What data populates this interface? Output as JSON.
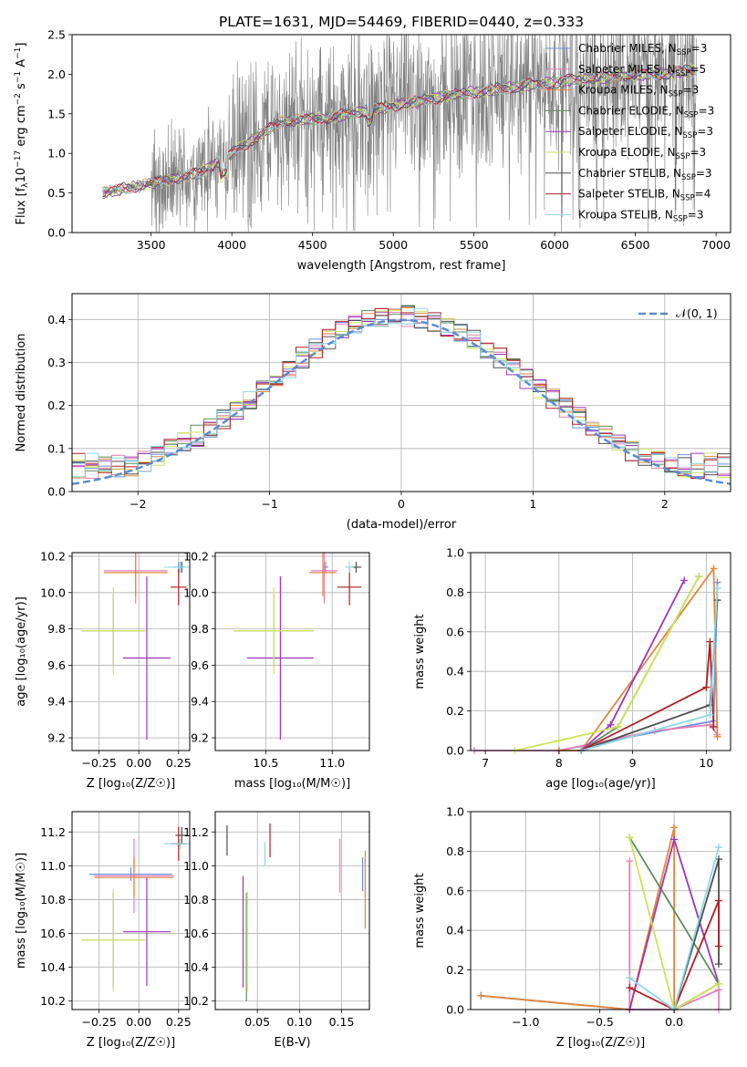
{
  "figure_title": "PLATE=1631, MJD=54469, FIBERID=0440, z=0.333",
  "colors": {
    "chabrier_miles": "#6f8fdc",
    "salpeter_miles": "#e67fb7",
    "kroupa_miles": "#e1873e",
    "chabrier_elodie": "#5b8c5b",
    "salpeter_elodie": "#9c36b5",
    "kroupa_elodie": "#cfe35a",
    "chabrier_stelib": "#4d4d4d",
    "salpeter_stelib": "#b01e24",
    "kroupa_stelib": "#8dd8e3",
    "spectrum": "#808080",
    "gaussian": "#5b8ad6",
    "grid": "#b0b0b0"
  },
  "legend_entries": [
    {
      "label": "Chabrier MILES, N",
      "sub": "SSP",
      "suffix": "=3",
      "color": "#6f8fdc"
    },
    {
      "label": "Salpeter MILES, N",
      "sub": "SSP",
      "suffix": "=5",
      "color": "#e67fb7"
    },
    {
      "label": "Kroupa MILES, N",
      "sub": "SSP",
      "suffix": "=3",
      "color": "#e1873e"
    },
    {
      "label": "Chabrier ELODIE, N",
      "sub": "SSP",
      "suffix": "=3",
      "color": "#5b8c5b"
    },
    {
      "label": "Salpeter ELODIE, N",
      "sub": "SSP",
      "suffix": "=3",
      "color": "#9c36b5"
    },
    {
      "label": "Kroupa ELODIE, N",
      "sub": "SSP",
      "suffix": "=3",
      "color": "#cfe35a"
    },
    {
      "label": "Chabrier STELIB, N",
      "sub": "SSP",
      "suffix": "=3",
      "color": "#4d4d4d"
    },
    {
      "label": "Salpeter STELIB, N",
      "sub": "SSP",
      "suffix": "=4",
      "color": "#b01e24"
    },
    {
      "label": "Kroupa STELIB, N",
      "sub": "SSP",
      "suffix": "=3",
      "color": "#8dd8e3"
    }
  ],
  "chart_data": [
    {
      "id": "spectrum",
      "type": "line",
      "title": "PLATE=1631, MJD=54469, FIBERID=0440, z=0.333",
      "xlabel": "wavelength [Angstrom, rest frame]",
      "ylabel_parts": [
        "Flux [f",
        "λ",
        "10",
        "−17",
        " erg cm",
        "−2",
        " s",
        "−1",
        " A",
        "−1",
        "]"
      ],
      "xlim": [
        3010,
        7090
      ],
      "ylim": [
        0,
        2.5
      ],
      "xticks": [
        "3500",
        "4000",
        "4500",
        "5000",
        "5500",
        "6000",
        "6500",
        "7000"
      ],
      "yticks": [
        "0.0",
        "0.5",
        "1.0",
        "1.5",
        "2.0",
        "2.5"
      ],
      "grid": false,
      "legend_position": "upper right",
      "data_range": [
        3200,
        6880
      ],
      "continuum": {
        "wavelength": [
          3200,
          3500,
          3800,
          4000,
          4300,
          4600,
          5000,
          5400,
          5800,
          6200,
          6600,
          6880
        ],
        "flux": [
          0.5,
          0.62,
          0.75,
          1.0,
          1.4,
          1.45,
          1.6,
          1.75,
          1.85,
          1.95,
          2.0,
          2.05
        ]
      }
    },
    {
      "id": "residuals",
      "type": "histogram",
      "xlabel": "(data-model)/error",
      "ylabel": "Normed distribution",
      "xlim": [
        -2.5,
        2.5
      ],
      "ylim": [
        0,
        0.46
      ],
      "xticks": [
        "−2",
        "−1",
        "0",
        "1",
        "2"
      ],
      "yticks": [
        "0.0",
        "0.1",
        "0.2",
        "0.3",
        "0.4"
      ],
      "grid": true,
      "legend": "𝒩(0, 1)",
      "legend_position": "upper right",
      "bins": 50
    },
    {
      "id": "age_vs_Z",
      "type": "errorbar",
      "xlabel": "Z [log₁₀(Z/Z☉)]",
      "ylabel": "age  [log₁₀(age/yr)]",
      "xlim": [
        -0.42,
        0.32
      ],
      "ylim": [
        9.13,
        10.22
      ],
      "xticks": [
        "−0.25",
        "0.00",
        "0.25"
      ],
      "yticks": [
        "9.2",
        "9.4",
        "9.6",
        "9.8",
        "10.0",
        "10.2"
      ],
      "grid": true,
      "points": [
        {
          "model": "chabrier_miles",
          "x": 0.25,
          "y": 10.14,
          "xerr": 0.03,
          "yerr": 0.03
        },
        {
          "model": "salpeter_miles",
          "x": -0.02,
          "y": 10.12,
          "xerr": 0.2,
          "yerr": 0.18
        },
        {
          "model": "kroupa_miles",
          "x": -0.02,
          "y": 10.11,
          "xerr": 0.2,
          "yerr": 0.13
        },
        {
          "model": "chabrier_elodie",
          "x": -0.16,
          "y": 9.79,
          "xerr": 0.2,
          "yerr": 0.2
        },
        {
          "model": "salpeter_elodie",
          "x": 0.05,
          "y": 9.64,
          "xerr": 0.15,
          "yerr": 0.45
        },
        {
          "model": "kroupa_elodie",
          "x": -0.16,
          "y": 9.79,
          "xerr": 0.2,
          "yerr": 0.24
        },
        {
          "model": "chabrier_stelib",
          "x": 0.27,
          "y": 10.14,
          "xerr": 0.02,
          "yerr": 0.03
        },
        {
          "model": "salpeter_stelib",
          "x": 0.25,
          "y": 10.03,
          "xerr": 0.05,
          "yerr": 0.1
        },
        {
          "model": "kroupa_stelib",
          "x": 0.26,
          "y": 10.14,
          "xerr": 0.1,
          "yerr": 0.03
        }
      ]
    },
    {
      "id": "age_vs_mass",
      "type": "errorbar",
      "xlabel": "mass [log₁₀(M/M☉)]",
      "ylabel": "",
      "xlim": [
        10.12,
        11.28
      ],
      "ylim": [
        9.13,
        10.22
      ],
      "xticks": [
        "10.5",
        "11.0"
      ],
      "yticks": [
        "9.2",
        "9.4",
        "9.6",
        "9.8",
        "10.0",
        "10.2"
      ],
      "grid": true,
      "points": [
        {
          "model": "chabrier_miles",
          "x": 10.95,
          "y": 10.14,
          "xerr": 0.02,
          "yerr": 0.03
        },
        {
          "model": "salpeter_miles",
          "x": 10.94,
          "y": 10.12,
          "xerr": 0.1,
          "yerr": 0.18
        },
        {
          "model": "kroupa_miles",
          "x": 10.93,
          "y": 10.11,
          "xerr": 0.1,
          "yerr": 0.13
        },
        {
          "model": "chabrier_elodie",
          "x": 10.56,
          "y": 9.79,
          "xerr": 0.3,
          "yerr": 0.2
        },
        {
          "model": "salpeter_elodie",
          "x": 10.61,
          "y": 9.64,
          "xerr": 0.25,
          "yerr": 0.45
        },
        {
          "model": "kroupa_elodie",
          "x": 10.56,
          "y": 9.79,
          "xerr": 0.3,
          "yerr": 0.24
        },
        {
          "model": "chabrier_stelib",
          "x": 11.18,
          "y": 10.14,
          "xerr": 0.04,
          "yerr": 0.03
        },
        {
          "model": "salpeter_stelib",
          "x": 11.13,
          "y": 10.03,
          "xerr": 0.09,
          "yerr": 0.1
        },
        {
          "model": "kroupa_stelib",
          "x": 11.13,
          "y": 10.14,
          "xerr": 0.03,
          "yerr": 0.03
        }
      ]
    },
    {
      "id": "weight_vs_age",
      "type": "line",
      "xlabel": "age  [log₁₀(age/yr)]",
      "ylabel": "mass weight",
      "xlim": [
        6.8,
        10.33
      ],
      "ylim": [
        0,
        1
      ],
      "xticks": [
        "7",
        "8",
        "9",
        "10"
      ],
      "yticks": [
        "0.0",
        "0.2",
        "0.4",
        "0.6",
        "0.8",
        "1.0"
      ],
      "grid": true,
      "series": [
        {
          "model": "chabrier_miles",
          "x": [
            8.0,
            10.1,
            10.15
          ],
          "y": [
            0.0,
            0.15,
            0.85
          ]
        },
        {
          "model": "salpeter_miles",
          "x": [
            6.85,
            8.0,
            9.3,
            10.05,
            10.15
          ],
          "y": [
            0.0,
            0.0,
            0.1,
            0.13,
            0.08
          ]
        },
        {
          "model": "kroupa_miles",
          "x": [
            8.0,
            8.3,
            10.1,
            10.15
          ],
          "y": [
            0.0,
            0.0,
            0.92,
            0.07
          ]
        },
        {
          "model": "chabrier_elodie",
          "x": [
            8.3,
            8.8,
            9.9
          ],
          "y": [
            0.0,
            0.12,
            0.88
          ]
        },
        {
          "model": "salpeter_elodie",
          "x": [
            8.3,
            8.7,
            9.7
          ],
          "y": [
            0.0,
            0.13,
            0.86
          ]
        },
        {
          "model": "kroupa_elodie",
          "x": [
            7.4,
            8.0,
            8.8,
            9.9
          ],
          "y": [
            0.0,
            0.05,
            0.12,
            0.88
          ]
        },
        {
          "model": "chabrier_stelib",
          "x": [
            8.3,
            10.05,
            10.15
          ],
          "y": [
            0.0,
            0.23,
            0.76
          ]
        },
        {
          "model": "salpeter_stelib",
          "x": [
            8.3,
            10.0,
            10.05,
            10.1
          ],
          "y": [
            0.0,
            0.32,
            0.55,
            0.12
          ]
        },
        {
          "model": "kroupa_stelib",
          "x": [
            8.3,
            10.05,
            10.15
          ],
          "y": [
            0.0,
            0.18,
            0.82
          ]
        }
      ]
    },
    {
      "id": "mass_vs_Z",
      "type": "errorbar",
      "xlabel": "Z [log₁₀(Z/Z☉)]",
      "ylabel": "mass [log₁₀(M/M☉)]",
      "xlim": [
        -0.42,
        0.32
      ],
      "ylim": [
        10.15,
        11.32
      ],
      "xticks": [
        "−0.25",
        "0.00",
        "0.25"
      ],
      "yticks": [
        "10.2",
        "10.4",
        "10.6",
        "10.8",
        "11.0",
        "11.2"
      ],
      "grid": true,
      "points": [
        {
          "model": "chabrier_miles",
          "x": -0.05,
          "y": 10.95,
          "xerr": 0.26,
          "yerr": 0.04
        },
        {
          "model": "salpeter_miles",
          "x": -0.03,
          "y": 10.94,
          "xerr": 0.25,
          "yerr": 0.22
        },
        {
          "model": "kroupa_miles",
          "x": -0.03,
          "y": 10.93,
          "xerr": 0.25,
          "yerr": 0.12
        },
        {
          "model": "chabrier_elodie",
          "x": -0.16,
          "y": 10.56,
          "xerr": 0.2,
          "yerr": 0.28
        },
        {
          "model": "salpeter_elodie",
          "x": 0.05,
          "y": 10.61,
          "xerr": 0.15,
          "yerr": 0.32
        },
        {
          "model": "kroupa_elodie",
          "x": -0.16,
          "y": 10.56,
          "xerr": 0.2,
          "yerr": 0.3
        },
        {
          "model": "chabrier_stelib",
          "x": 0.27,
          "y": 11.18,
          "xerr": 0.04,
          "yerr": 0.05
        },
        {
          "model": "salpeter_stelib",
          "x": 0.25,
          "y": 11.13,
          "xerr": 0.05,
          "yerr": 0.1
        },
        {
          "model": "kroupa_stelib",
          "x": 0.26,
          "y": 11.13,
          "xerr": 0.1,
          "yerr": 0.03
        }
      ]
    },
    {
      "id": "mass_vs_ebv",
      "type": "errorbar",
      "xlabel": "E(B-V)",
      "ylabel": "",
      "xlim": [
        0.0,
        0.183
      ],
      "ylim": [
        10.15,
        11.32
      ],
      "xticks": [
        "0.05",
        "0.10",
        "0.15"
      ],
      "yticks": [
        "10.2",
        "10.4",
        "10.6",
        "10.8",
        "11.0",
        "11.2"
      ],
      "grid": true,
      "points": [
        {
          "model": "chabrier_miles",
          "x": 0.175,
          "y": 10.95,
          "xerr": 0,
          "yerr": 0.1
        },
        {
          "model": "salpeter_miles",
          "x": 0.148,
          "y": 11.0,
          "xerr": 0,
          "yerr": 0.16
        },
        {
          "model": "kroupa_miles",
          "x": 0.178,
          "y": 10.86,
          "xerr": 0,
          "yerr": 0.23
        },
        {
          "model": "chabrier_elodie",
          "x": 0.037,
          "y": 10.52,
          "xerr": 0,
          "yerr": 0.32
        },
        {
          "model": "salpeter_elodie",
          "x": 0.033,
          "y": 10.61,
          "xerr": 0,
          "yerr": 0.33
        },
        {
          "model": "kroupa_elodie",
          "x": 0.038,
          "y": 10.55,
          "xerr": 0,
          "yerr": 0.3
        },
        {
          "model": "chabrier_stelib",
          "x": 0.014,
          "y": 11.15,
          "xerr": 0,
          "yerr": 0.09
        },
        {
          "model": "salpeter_stelib",
          "x": 0.065,
          "y": 11.15,
          "xerr": 0,
          "yerr": 0.1
        },
        {
          "model": "kroupa_stelib",
          "x": 0.059,
          "y": 11.07,
          "xerr": 0,
          "yerr": 0.07
        }
      ]
    },
    {
      "id": "weight_vs_Z",
      "type": "line",
      "xlabel": "Z [log₁₀(Z/Z☉)]",
      "ylabel": "mass weight",
      "xlim": [
        -1.37,
        0.38
      ],
      "ylim": [
        0,
        1
      ],
      "xticks": [
        "−1.0",
        "−0.5",
        "0.0"
      ],
      "yticks": [
        "0.0",
        "0.2",
        "0.4",
        "0.6",
        "0.8",
        "1.0"
      ],
      "grid": true,
      "series": [
        {
          "model": "chabrier_miles",
          "x": [
            -1.3,
            -0.3,
            0.0,
            0.3
          ],
          "y": [
            0.07,
            0.0,
            0.0,
            0.13
          ]
        },
        {
          "model": "salpeter_miles",
          "x": [
            -0.3,
            -0.3,
            0.0,
            0.3,
            0.3
          ],
          "y": [
            0.75,
            0.0,
            0.0,
            0.1,
            0.0
          ]
        },
        {
          "model": "kroupa_miles",
          "x": [
            -1.3,
            -0.3,
            0.0,
            0.0
          ],
          "y": [
            0.07,
            0.0,
            0.92,
            0.0
          ]
        },
        {
          "model": "chabrier_elodie",
          "x": [
            -0.3,
            0.3
          ],
          "y": [
            0.87,
            0.13
          ]
        },
        {
          "model": "salpeter_elodie",
          "x": [
            -0.3,
            0.0,
            0.3
          ],
          "y": [
            0.0,
            0.86,
            0.13
          ]
        },
        {
          "model": "kroupa_elodie",
          "x": [
            -0.3,
            0.0,
            0.3
          ],
          "y": [
            0.87,
            0.0,
            0.13
          ]
        },
        {
          "model": "chabrier_stelib",
          "x": [
            0.0,
            0.3,
            0.3
          ],
          "y": [
            0.0,
            0.76,
            0.23
          ]
        },
        {
          "model": "salpeter_stelib",
          "x": [
            -0.3,
            0.0,
            0.3,
            0.3
          ],
          "y": [
            0.11,
            0.0,
            0.55,
            0.32
          ]
        },
        {
          "model": "kroupa_stelib",
          "x": [
            -0.3,
            0.0,
            0.3
          ],
          "y": [
            0.16,
            0.0,
            0.82
          ]
        }
      ]
    }
  ]
}
